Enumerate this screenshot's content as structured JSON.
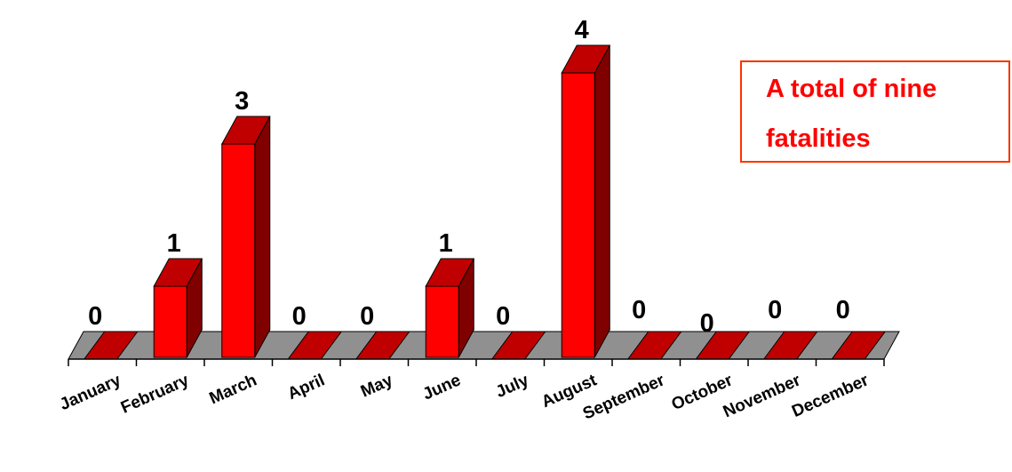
{
  "chart_data": {
    "type": "bar",
    "categories": [
      "January",
      "February",
      "March",
      "April",
      "May",
      "June",
      "July",
      "August",
      "September",
      "October",
      "November",
      "December"
    ],
    "values": [
      0,
      1,
      3,
      0,
      0,
      1,
      0,
      4,
      0,
      0,
      0,
      0
    ],
    "data_labels": [
      "0",
      "1",
      "3",
      "0",
      "0",
      "1",
      "0",
      "4",
      "0",
      "0",
      "0",
      "0"
    ],
    "three_d": true,
    "grid": false,
    "legend": false
  },
  "annotation": {
    "line1": "A total of nine",
    "line2": "fatalities"
  },
  "colors": {
    "bar_front": "#ff0000",
    "bar_side": "#800000",
    "bar_top": "#c00000",
    "zero_bar": "#c00000",
    "floor_gap": "#909090",
    "annotation_text": "#ff0000",
    "annotation_border": "#ff3300"
  }
}
